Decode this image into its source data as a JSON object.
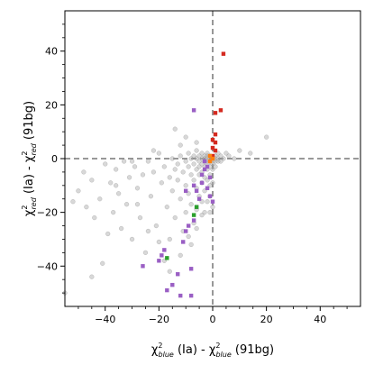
{
  "chart_data": {
    "type": "scatter",
    "xlabel": "χ²blue (Ia) - χ²blue (91bg)",
    "ylabel": "χ²red (Ia) - χ²red (91bg)",
    "xlabel_parts": {
      "main": "χ",
      "sup": "2",
      "sub": "blue",
      "rest": " (Ia) - ",
      "main2": "χ",
      "sup2": "2",
      "sub2": "blue",
      "rest2": " (91bg)"
    },
    "ylabel_parts": {
      "main": "χ",
      "sup": "2",
      "sub": "red",
      "rest": " (Ia) - ",
      "main2": "χ",
      "sup2": "2",
      "sub2": "red",
      "rest2": " (91bg)"
    },
    "xlim": [
      -55,
      55
    ],
    "ylim": [
      -55,
      55
    ],
    "xticks": [
      -40,
      -20,
      0,
      20,
      40
    ],
    "yticks": [
      -40,
      -20,
      0,
      20,
      40
    ],
    "xtick_labels": [
      "−40",
      "−20",
      "0",
      "20",
      "40"
    ],
    "ytick_labels": [
      "−40",
      "−20",
      "0",
      "20",
      "40"
    ],
    "grid": false,
    "reference_lines": {
      "x": 0,
      "y": 0,
      "style": "dashed",
      "color": "#777777"
    },
    "colors": {
      "background": "#a9a9a9",
      "purple": "#9a5fc4",
      "red": "#d42a20",
      "green": "#2ca02c",
      "orange": "#ff7f0e"
    },
    "series": [
      {
        "marker": "circle",
        "color": "#a9a9a9",
        "points": [
          [
            -55,
            -50
          ],
          [
            -50,
            -12
          ],
          [
            -48,
            -5
          ],
          [
            -47,
            -18
          ],
          [
            -45,
            -44
          ],
          [
            -44,
            -22
          ],
          [
            -42,
            -15
          ],
          [
            -41,
            -39
          ],
          [
            -40,
            -2
          ],
          [
            -39,
            -28
          ],
          [
            -38,
            -9
          ],
          [
            -37,
            -20
          ],
          [
            -36,
            -4
          ],
          [
            -35,
            -13
          ],
          [
            -34,
            -26
          ],
          [
            -33,
            -1
          ],
          [
            -32,
            -17
          ],
          [
            -31,
            -7
          ],
          [
            -30,
            -30
          ],
          [
            -29,
            -3
          ],
          [
            -28,
            -11
          ],
          [
            -27,
            -22
          ],
          [
            -26,
            -6
          ],
          [
            -25,
            -35
          ],
          [
            -24,
            -1
          ],
          [
            -23,
            -14
          ],
          [
            -22,
            -5
          ],
          [
            -21,
            -25
          ],
          [
            -20,
            2
          ],
          [
            -19,
            -9
          ],
          [
            -18,
            -38
          ],
          [
            -18,
            -3
          ],
          [
            -17,
            -18
          ],
          [
            -16,
            -7
          ],
          [
            -16,
            -30
          ],
          [
            -15,
            0
          ],
          [
            -15,
            -12
          ],
          [
            -14,
            -4
          ],
          [
            -14,
            -22
          ],
          [
            -13,
            -2
          ],
          [
            -13,
            -8
          ],
          [
            -12,
            1
          ],
          [
            -12,
            -15
          ],
          [
            -11,
            -5
          ],
          [
            -11,
            -27
          ],
          [
            -10,
            -1
          ],
          [
            -10,
            -10
          ],
          [
            -10,
            -20
          ],
          [
            -9,
            2
          ],
          [
            -9,
            -3
          ],
          [
            -9,
            -13
          ],
          [
            -8,
            0
          ],
          [
            -8,
            -6
          ],
          [
            -8,
            -17
          ],
          [
            -8,
            -32
          ],
          [
            -7,
            1
          ],
          [
            -7,
            -2
          ],
          [
            -7,
            -8
          ],
          [
            -7,
            -24
          ],
          [
            -6,
            3
          ],
          [
            -6,
            0
          ],
          [
            -6,
            -4
          ],
          [
            -6,
            -11
          ],
          [
            -6,
            -19
          ],
          [
            -5,
            1
          ],
          [
            -5,
            -1
          ],
          [
            -5,
            -3
          ],
          [
            -5,
            -6
          ],
          [
            -5,
            -14
          ],
          [
            -4,
            2
          ],
          [
            -4,
            0
          ],
          [
            -4,
            -2
          ],
          [
            -4,
            -5
          ],
          [
            -4,
            -9
          ],
          [
            -4,
            -21
          ],
          [
            -3,
            1
          ],
          [
            -3,
            0
          ],
          [
            -3,
            -1
          ],
          [
            -3,
            -3
          ],
          [
            -3,
            -7
          ],
          [
            -3,
            -12
          ],
          [
            -2,
            2
          ],
          [
            -2,
            1
          ],
          [
            -2,
            0
          ],
          [
            -2,
            -1
          ],
          [
            -2,
            -2
          ],
          [
            -2,
            -4
          ],
          [
            -2,
            -8
          ],
          [
            -2,
            -16
          ],
          [
            -1,
            1
          ],
          [
            -1,
            0
          ],
          [
            -1,
            -1
          ],
          [
            -1,
            -3
          ],
          [
            -1,
            -6
          ],
          [
            -1,
            -10
          ],
          [
            -1,
            -20
          ],
          [
            0,
            0
          ],
          [
            0,
            -1
          ],
          [
            0,
            -2
          ],
          [
            0,
            -4
          ],
          [
            0,
            -9
          ],
          [
            1,
            1
          ],
          [
            1,
            0
          ],
          [
            1,
            -1
          ],
          [
            1,
            -3
          ],
          [
            2,
            2
          ],
          [
            2,
            0
          ],
          [
            2,
            -1
          ],
          [
            3,
            1
          ],
          [
            3,
            -1
          ],
          [
            4,
            0
          ],
          [
            5,
            2
          ],
          [
            6,
            1
          ],
          [
            8,
            0
          ],
          [
            10,
            3
          ],
          [
            14,
            2
          ],
          [
            20,
            8
          ],
          [
            -14,
            11
          ],
          [
            -10,
            8
          ],
          [
            -6,
            6
          ],
          [
            -12,
            5
          ],
          [
            -22,
            3
          ],
          [
            -30,
            -1
          ],
          [
            -36,
            -10
          ],
          [
            -45,
            -8
          ],
          [
            -52,
            -16
          ],
          [
            -28,
            -17
          ],
          [
            -24,
            -27
          ],
          [
            -20,
            -31
          ],
          [
            -16,
            -42
          ],
          [
            -12,
            -36
          ],
          [
            -9,
            -29
          ],
          [
            -6,
            -26
          ],
          [
            -4,
            -16
          ],
          [
            -3,
            -20
          ],
          [
            -1,
            -14
          ],
          [
            0,
            -18
          ]
        ]
      },
      {
        "marker": "square",
        "color": "#9a5fc4",
        "points": [
          [
            -7,
            18
          ],
          [
            -26,
            -40
          ],
          [
            -20,
            -38
          ],
          [
            -18,
            -34
          ],
          [
            -17,
            -49
          ],
          [
            -19,
            -36
          ],
          [
            -15,
            -47
          ],
          [
            -12,
            -51
          ],
          [
            -13,
            -43
          ],
          [
            -11,
            -31
          ],
          [
            -10,
            -27
          ],
          [
            -9,
            -25
          ],
          [
            -8,
            -41
          ],
          [
            -8,
            -51
          ],
          [
            -7,
            -23
          ],
          [
            -6,
            -18
          ],
          [
            -5,
            -15
          ],
          [
            -6,
            -12
          ],
          [
            -7,
            -10
          ],
          [
            -10,
            -12
          ],
          [
            -4,
            -9
          ],
          [
            -4,
            -6
          ],
          [
            -3,
            -4
          ],
          [
            -2,
            -3
          ],
          [
            -3,
            -1
          ],
          [
            -1,
            -14
          ],
          [
            0,
            -16
          ],
          [
            -1,
            -7
          ],
          [
            -2,
            -11
          ]
        ]
      },
      {
        "marker": "square",
        "color": "#d42a20",
        "points": [
          [
            4,
            39
          ],
          [
            3,
            18
          ],
          [
            1,
            17
          ],
          [
            1,
            9
          ],
          [
            0,
            7
          ],
          [
            1,
            6
          ],
          [
            0,
            4
          ],
          [
            1,
            3
          ],
          [
            0,
            1
          ]
        ]
      },
      {
        "marker": "square",
        "color": "#2ca02c",
        "points": [
          [
            -17,
            -37
          ],
          [
            -6,
            -18
          ],
          [
            -7,
            -21
          ]
        ]
      },
      {
        "marker": "square",
        "color": "#ff7f0e",
        "points": [
          [
            -1,
            1
          ],
          [
            0,
            0
          ],
          [
            -1,
            -1
          ]
        ]
      }
    ]
  }
}
